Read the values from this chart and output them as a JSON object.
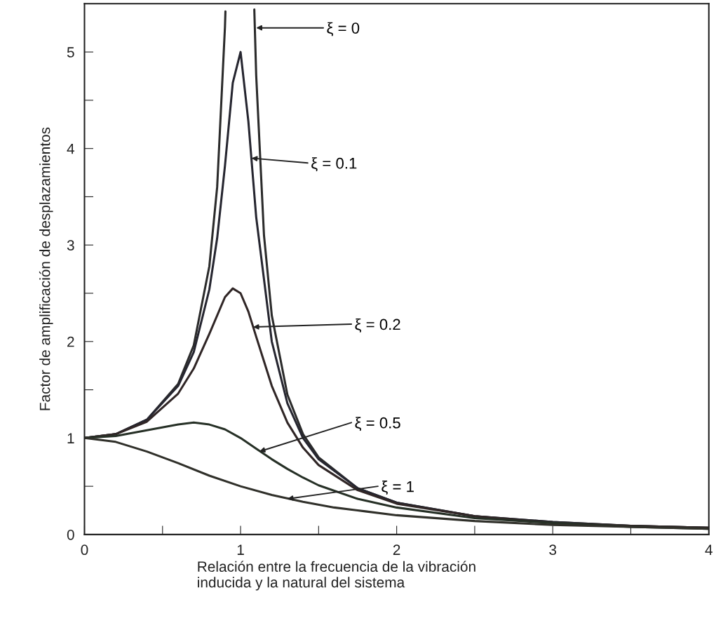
{
  "chart_data": {
    "type": "line",
    "xlabel": "Relación entre la frecuencia de la vibración\ninducida y la natural del sistema",
    "ylabel": "Factor de amplificación de desplazamientos",
    "xlim": [
      0,
      4
    ],
    "ylim": [
      0,
      5.5
    ],
    "xticks": [
      0,
      {
        "value": 0.5,
        "label": null
      },
      1,
      {
        "value": 1.5,
        "label": null
      },
      2,
      {
        "value": 2.5,
        "label": null
      },
      3,
      {
        "value": 3.5,
        "label": null
      },
      4
    ],
    "yticks": [
      0,
      {
        "value": 0.5,
        "label": null
      },
      1,
      {
        "value": 1.5,
        "label": null
      },
      2,
      {
        "value": 2.5,
        "label": null
      },
      3,
      {
        "value": 3.5,
        "label": null
      },
      4,
      {
        "value": 4.5,
        "label": null
      },
      5
    ],
    "grid": false,
    "marker": "none",
    "line_style": "solid",
    "series": [
      {
        "color": "#2b2b2b",
        "x": [
          0,
          0.2,
          0.4,
          0.6,
          0.7,
          0.8,
          0.85,
          0.9,
          0.903,
          1.0,
          1.088,
          1.1,
          1.15,
          1.2,
          1.3,
          1.4,
          1.5,
          1.75,
          2,
          2.5,
          3,
          3.5,
          4
        ],
        "values": [
          1,
          1.04,
          1.19,
          1.56,
          1.96,
          2.78,
          3.6,
          5.26,
          5.42,
          null,
          5.44,
          4.76,
          3.1,
          2.27,
          1.45,
          1.04,
          0.8,
          0.48,
          0.33,
          0.19,
          0.13,
          0.09,
          0.07
        ]
      },
      {
        "color": "#262630",
        "x": [
          0,
          0.2,
          0.4,
          0.6,
          0.7,
          0.8,
          0.85,
          0.9,
          0.95,
          1.0,
          1.05,
          1.1,
          1.2,
          1.3,
          1.4,
          1.5,
          1.75,
          2,
          2.5,
          3,
          3.5,
          4
        ],
        "values": [
          1,
          1.04,
          1.19,
          1.54,
          1.89,
          2.54,
          3.07,
          3.82,
          4.68,
          5.0,
          4.28,
          3.29,
          2.0,
          1.36,
          1.0,
          0.78,
          0.48,
          0.33,
          0.19,
          0.13,
          0.09,
          0.07
        ]
      },
      {
        "color": "#302626",
        "x": [
          0,
          0.2,
          0.4,
          0.6,
          0.7,
          0.8,
          0.9,
          0.95,
          1.0,
          1.05,
          1.1,
          1.2,
          1.3,
          1.4,
          1.5,
          1.75,
          2,
          2.5,
          3,
          3.5,
          4
        ],
        "values": [
          1,
          1.04,
          1.17,
          1.46,
          1.72,
          2.08,
          2.46,
          2.55,
          2.5,
          2.31,
          2.05,
          1.54,
          1.16,
          0.9,
          0.72,
          0.46,
          0.32,
          0.19,
          0.12,
          0.09,
          0.07
        ]
      },
      {
        "color": "#263026",
        "x": [
          0,
          0.2,
          0.4,
          0.6,
          0.7,
          0.8,
          0.9,
          1.0,
          1.1,
          1.2,
          1.3,
          1.4,
          1.5,
          1.75,
          2,
          2.5,
          3,
          3.5,
          4
        ],
        "values": [
          1,
          1.02,
          1.08,
          1.14,
          1.16,
          1.14,
          1.09,
          1.0,
          0.89,
          0.78,
          0.68,
          0.59,
          0.51,
          0.37,
          0.28,
          0.17,
          0.12,
          0.08,
          0.06
        ]
      },
      {
        "color": "#30302a",
        "x": [
          0,
          0.2,
          0.4,
          0.6,
          0.8,
          1.0,
          1.2,
          1.4,
          1.6,
          1.8,
          2,
          2.5,
          3,
          3.5,
          4
        ],
        "values": [
          1,
          0.96,
          0.86,
          0.74,
          0.61,
          0.5,
          0.41,
          0.34,
          0.28,
          0.24,
          0.2,
          0.14,
          0.1,
          0.08,
          0.06
        ]
      }
    ],
    "annotations": [
      "ξ = 0",
      "ξ = 0.1",
      {
        "text": "ξ = 0.2",
        "x": 1.08,
        "y": 2.15
      },
      {
        "text": "ξ = 0.5",
        "x": 1.12,
        "y": 0.86
      },
      {
        "text": "ξ = 1",
        "x": 1.3,
        "y": 0.37
      }
    ]
  }
}
